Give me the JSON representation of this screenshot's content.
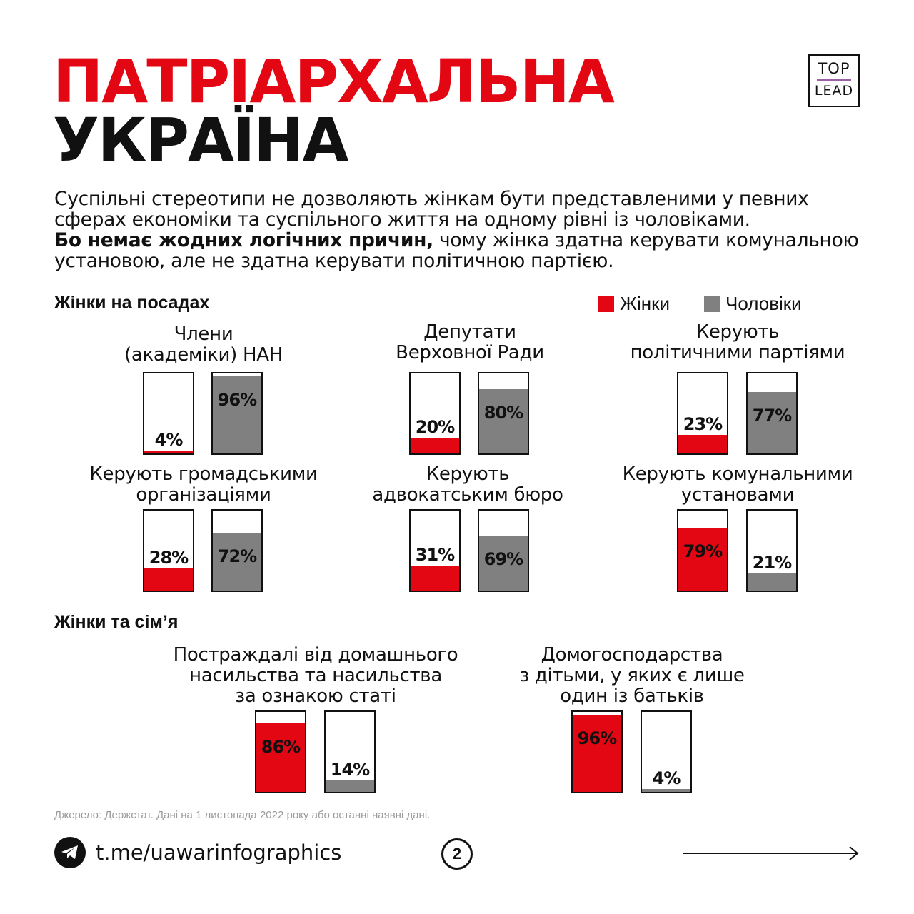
{
  "title": {
    "line1": "ПАТРІАРХАЛЬНА",
    "line2": "УКРАЇНА"
  },
  "logo": {
    "top": "TOP",
    "bottom": "LEAD"
  },
  "intro": {
    "text1": "Суспільні стереотипи не дозволяють жінкам бути представленими у певних сферах економіки та суспільного життя на одному рівні із чоловіками.",
    "bold": "Бо немає жодних логічних причин,",
    "text2": " чому жінка здатна керувати комунальною установою, але не здатна керувати політичною партією."
  },
  "legend": {
    "women": "Жінки",
    "men": "Чоловіки"
  },
  "colors": {
    "women": "#e30613",
    "men": "#808080",
    "text": "#111111",
    "source": "#9a9a9a"
  },
  "sections": {
    "positions": "Жінки на посадах",
    "family": "Жінки та сім’я"
  },
  "chart_data": [
    {
      "type": "bar",
      "section": "Жінки на посадах",
      "title_lines": [
        "Члени",
        "(академіки) НАН"
      ],
      "categories": [
        "Жінки",
        "Чоловіки"
      ],
      "values": [
        4,
        96
      ],
      "labels": [
        "4%",
        "96%"
      ],
      "ylim": [
        0,
        100
      ]
    },
    {
      "type": "bar",
      "section": "Жінки на посадах",
      "title_lines": [
        "Депутати",
        "Верховної Ради"
      ],
      "categories": [
        "Жінки",
        "Чоловіки"
      ],
      "values": [
        20,
        80
      ],
      "labels": [
        "20%",
        "80%"
      ],
      "ylim": [
        0,
        100
      ]
    },
    {
      "type": "bar",
      "section": "Жінки на посадах",
      "title_lines": [
        "Керують",
        "політичними партіями"
      ],
      "categories": [
        "Жінки",
        "Чоловіки"
      ],
      "values": [
        23,
        77
      ],
      "labels": [
        "23%",
        "77%"
      ],
      "ylim": [
        0,
        100
      ]
    },
    {
      "type": "bar",
      "section": "Жінки на посадах",
      "title_lines": [
        "Керують громадськими",
        "організаціями"
      ],
      "categories": [
        "Жінки",
        "Чоловіки"
      ],
      "values": [
        28,
        72
      ],
      "labels": [
        "28%",
        "72%"
      ],
      "ylim": [
        0,
        100
      ]
    },
    {
      "type": "bar",
      "section": "Жінки на посадах",
      "title_lines": [
        "Керують",
        "адвокатським бюро"
      ],
      "categories": [
        "Жінки",
        "Чоловіки"
      ],
      "values": [
        31,
        69
      ],
      "labels": [
        "31%",
        "69%"
      ],
      "ylim": [
        0,
        100
      ]
    },
    {
      "type": "bar",
      "section": "Жінки на посадах",
      "title_lines": [
        "Керують комунальними",
        "установами"
      ],
      "categories": [
        "Жінки",
        "Чоловіки"
      ],
      "values": [
        79,
        21
      ],
      "labels": [
        "79%",
        "21%"
      ],
      "ylim": [
        0,
        100
      ]
    },
    {
      "type": "bar",
      "section": "Жінки та сім’я",
      "title_lines": [
        "Постраждалі від домашнього",
        "насильства та насильства",
        "за ознакою статі"
      ],
      "categories": [
        "Жінки",
        "Чоловіки"
      ],
      "values": [
        86,
        14
      ],
      "labels": [
        "86%",
        "14%"
      ],
      "ylim": [
        0,
        100
      ]
    },
    {
      "type": "bar",
      "section": "Жінки та сім’я",
      "title_lines": [
        "Домогосподарства",
        "з дітьми, у яких є лише",
        "один із батьків"
      ],
      "categories": [
        "Жінки",
        "Чоловіки"
      ],
      "values": [
        96,
        4
      ],
      "labels": [
        "96%",
        "4%"
      ],
      "ylim": [
        0,
        100
      ]
    }
  ],
  "source": "Джерело: Держстат. Дані на 1 листопада 2022 року або останні наявні дані.",
  "footer": {
    "telegram": "t.me/uawarinfographics",
    "page": "2",
    "telegram_icon": "telegram-icon",
    "arrow_icon": "arrow-right-icon"
  }
}
